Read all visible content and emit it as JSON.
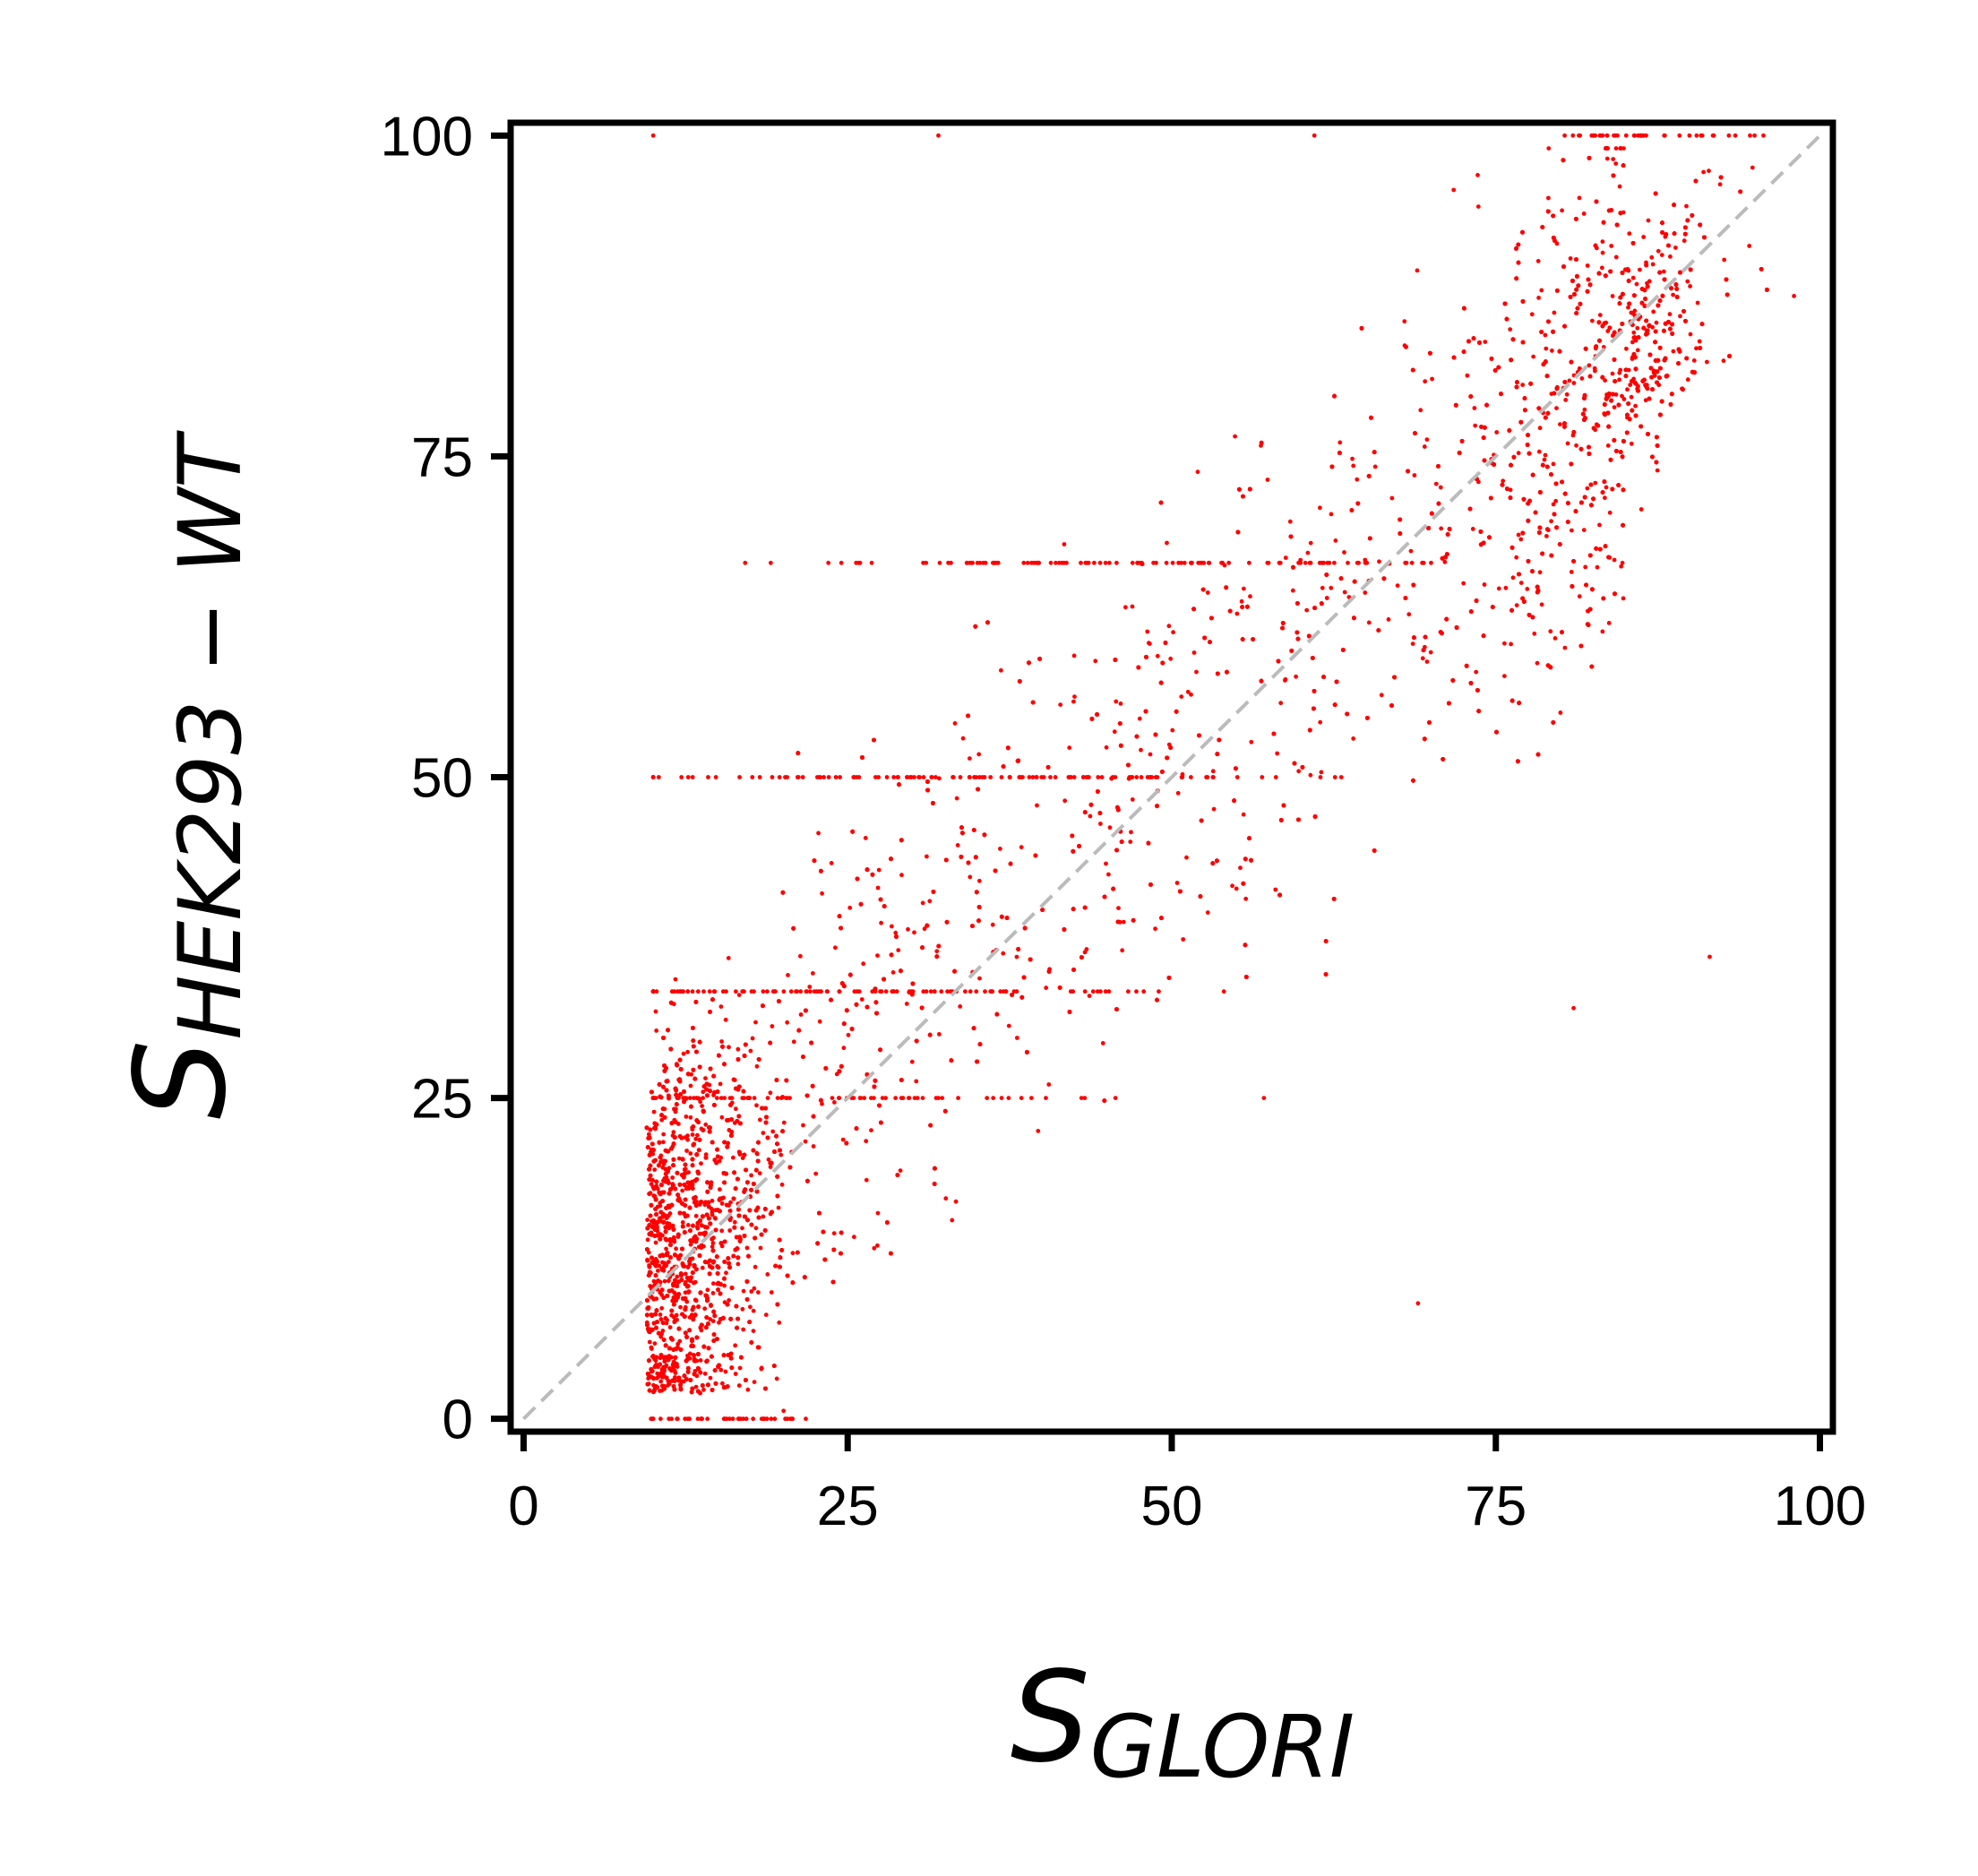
{
  "chart_data": {
    "type": "scatter",
    "title": "",
    "xlabel": {
      "symbol": "S",
      "subscript": "GLORI"
    },
    "ylabel": {
      "symbol": "S",
      "subscript": "HEK293 − WT"
    },
    "xlim": [
      -1,
      101
    ],
    "ylim": [
      -1,
      101
    ],
    "x_ticks": [
      0,
      25,
      50,
      75,
      100
    ],
    "y_ticks": [
      0,
      25,
      50,
      75,
      100
    ],
    "x_tick_labels": [
      "0",
      "25",
      "50",
      "75",
      "100"
    ],
    "y_tick_labels": [
      "0",
      "25",
      "50",
      "75",
      "100"
    ],
    "grid": false,
    "legend": "none",
    "marker_color": "#ff0000",
    "reference_line": {
      "kind": "y = x",
      "color": "#bbbbbb",
      "style": "dashed"
    },
    "series": [
      {
        "values_description_note": "",
        "distribution": {
          "x_min": 9.5,
          "x_max": 98,
          "clusters": [
            {
              "x": [
                9.5,
                20
              ],
              "y": [
                2,
                30
              ],
              "density": "very high"
            },
            {
              "x": [
                20,
                40
              ],
              "y": [
                10,
                45
              ],
              "density": "high"
            },
            {
              "x": [
                40,
                65
              ],
              "y": [
                35,
                70
              ],
              "density": "medium"
            },
            {
              "x": [
                65,
                85
              ],
              "y": [
                60,
                92
              ],
              "density": "medium"
            },
            {
              "x": [
                85,
                97
              ],
              "y": [
                80,
                100
              ],
              "density": "high"
            }
          ],
          "horizontal_bands_y": [
            0,
            25,
            33.3,
            50,
            66.7,
            100
          ]
        },
        "points": [
          [
            10.2,
            12.4
          ],
          [
            11.5,
            18.3
          ],
          [
            12.1,
            8.7
          ],
          [
            13.4,
            22.1
          ],
          [
            14.8,
            15.6
          ],
          [
            16.3,
            26.4
          ],
          [
            18.9,
            20.2
          ],
          [
            21.4,
            31.5
          ],
          [
            24.7,
            28.9
          ],
          [
            27.3,
            36.1
          ],
          [
            30.8,
            40.2
          ],
          [
            33.5,
            44.7
          ],
          [
            36.2,
            38.5
          ],
          [
            39.6,
            47.8
          ],
          [
            42.1,
            52.3
          ],
          [
            45.7,
            55.9
          ],
          [
            48.3,
            60.4
          ],
          [
            51.9,
            58.2
          ],
          [
            55.4,
            63.7
          ],
          [
            58.8,
            67.1
          ],
          [
            62.3,
            70.5
          ],
          [
            65.7,
            74.2
          ],
          [
            69.2,
            78.6
          ],
          [
            72.8,
            81.3
          ],
          [
            76.1,
            84.9
          ],
          [
            79.5,
            86.2
          ],
          [
            83.2,
            89.7
          ],
          [
            86.4,
            92.1
          ],
          [
            89.7,
            94.5
          ],
          [
            92.3,
            96.2
          ],
          [
            94.8,
            97.5
          ],
          [
            10.0,
            0.0
          ],
          [
            10.0,
            100.0
          ],
          [
            32.0,
            100.0
          ],
          [
            61.0,
            100.0
          ],
          [
            86.0,
            100.0
          ],
          [
            91.5,
            36.0
          ],
          [
            81.0,
            32.0
          ],
          [
            69.0,
            9.0
          ],
          [
            98.0,
            87.5
          ]
        ]
      }
    ]
  }
}
